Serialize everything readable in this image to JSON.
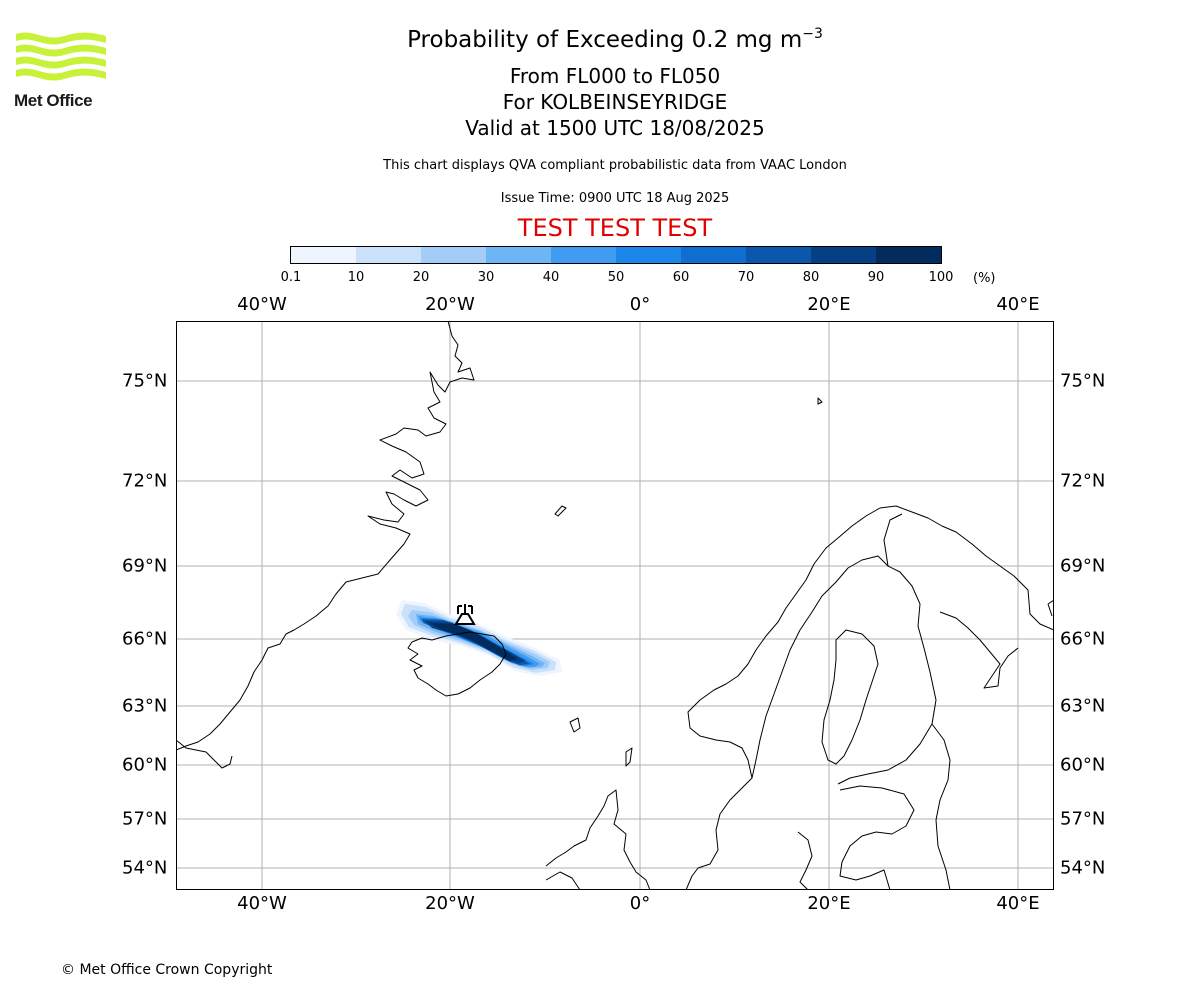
{
  "logo": {
    "text": "Met Office",
    "color": "#c8f23a"
  },
  "title": {
    "main": "Probability of Exceeding 0.2 mg m",
    "main_exponent": "−3",
    "flight_levels": "From FL000 to FL050",
    "location": "For KOLBEINSEYRIDGE",
    "valid": "Valid at 1500 UTC 18/08/2025"
  },
  "subtitle": {
    "qva": "This chart displays QVA compliant probabilistic data from VAAC London",
    "issue": "Issue Time: 0900 UTC 18 Aug 2025",
    "test_banner": "TEST TEST TEST"
  },
  "colorbar": {
    "ticks": [
      "0.1",
      "10",
      "20",
      "30",
      "40",
      "50",
      "60",
      "70",
      "80",
      "90",
      "100"
    ],
    "unit": "(%)",
    "colors": [
      "#eef5fe",
      "#c9e1fb",
      "#a3cdf8",
      "#6fb4f5",
      "#3f9cf0",
      "#1c86ea",
      "#0f6fd0",
      "#0a57ac",
      "#053f84",
      "#022c5e"
    ]
  },
  "map": {
    "lon_labels": [
      "40°W",
      "20°W",
      "0°",
      "20°E",
      "40°E"
    ],
    "lat_labels": [
      "75°N",
      "72°N",
      "69°N",
      "66°N",
      "63°N",
      "60°N",
      "57°N",
      "54°N"
    ],
    "volcano_marker": "volcano-icon"
  },
  "footer": {
    "copyright": "© Met Office Crown Copyright"
  }
}
